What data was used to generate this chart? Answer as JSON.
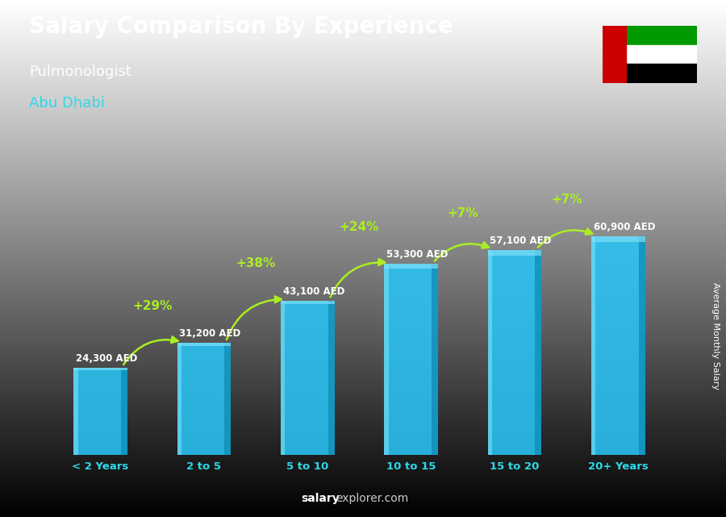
{
  "title": "Salary Comparison By Experience",
  "subtitle": "Pulmonologist",
  "city": "Abu Dhabi",
  "categories": [
    "< 2 Years",
    "2 to 5",
    "5 to 10",
    "10 to 15",
    "15 to 20",
    "20+ Years"
  ],
  "values": [
    24300,
    31200,
    43100,
    53300,
    57100,
    60900
  ],
  "labels": [
    "24,300 AED",
    "31,200 AED",
    "43,100 AED",
    "53,300 AED",
    "57,100 AED",
    "60,900 AED"
  ],
  "pct_changes": [
    "+29%",
    "+38%",
    "+24%",
    "+7%",
    "+7%"
  ],
  "bar_color_face": "#29C4F5",
  "bar_color_dark": "#0E8BB5",
  "bar_color_light": "#7DE0F8",
  "background_color": "#666666",
  "title_color": "#FFFFFF",
  "subtitle_color": "#FFFFFF",
  "city_color": "#2ED8E8",
  "label_color": "#FFFFFF",
  "pct_color": "#AAEE22",
  "arrow_color": "#AAEE22",
  "footer_salary_color": "#FFFFFF",
  "footer_explorer_color": "#BBBBBB",
  "ylabel": "Average Monthly Salary",
  "ylim": [
    0,
    75000
  ],
  "figsize": [
    9.0,
    6.41
  ],
  "dpi": 100
}
